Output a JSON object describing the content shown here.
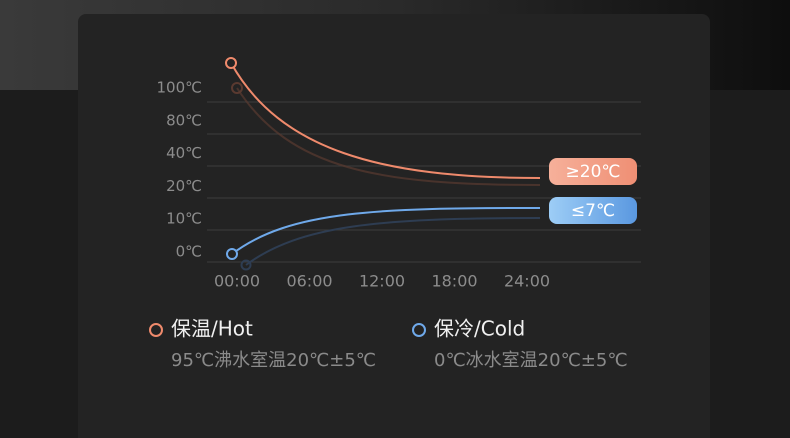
{
  "y_labels": [
    "100℃",
    "80℃",
    "40℃",
    "20℃",
    "10℃",
    "0℃"
  ],
  "x_labels": [
    "00:00",
    "06:00",
    "12:00",
    "18:00",
    "24:00"
  ],
  "badges": {
    "hot": "≥20℃",
    "cold": "≤7℃"
  },
  "legend": [
    {
      "title": "保温/Hot",
      "desc": "95℃沸水室温20℃±5℃"
    },
    {
      "title": "保冷/Cold",
      "desc": "0℃冰水室温20℃±5℃"
    }
  ]
}
